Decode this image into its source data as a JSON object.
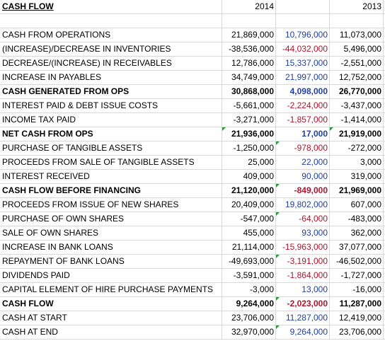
{
  "header": {
    "title": "CASH FLOW",
    "col_2014": "2014",
    "col_blank": "",
    "col_2013": "2013"
  },
  "rows": [
    {
      "label": "CASH FROM OPERATIONS",
      "a": "21,869,000",
      "b": "10,796,000",
      "c": "11,073,000",
      "bold": false,
      "b_color": "blue",
      "mark": ""
    },
    {
      "label": "(INCREASE)/DECREASE IN INVENTORIES",
      "a": "-38,536,000",
      "b": "-44,032,000",
      "c": "5,496,000",
      "bold": false,
      "b_color": "red",
      "mark": ""
    },
    {
      "label": "DECREASE/(INCREASE) IN RECEIVABLES",
      "a": "12,786,000",
      "b": "15,337,000",
      "c": "-2,551,000",
      "bold": false,
      "b_color": "blue",
      "mark": ""
    },
    {
      "label": "INCREASE IN PAYABLES",
      "a": "34,749,000",
      "b": "21,997,000",
      "c": "12,752,000",
      "bold": false,
      "b_color": "blue",
      "mark": ""
    },
    {
      "label": "CASH GENERATED FROM OPS",
      "a": "30,868,000",
      "b": "4,098,000",
      "c": "26,770,000",
      "bold": true,
      "b_color": "blue",
      "mark": ""
    },
    {
      "label": "INTEREST PAID & DEBT ISSUE COSTS",
      "a": "-5,661,000",
      "b": "-2,224,000",
      "c": "-3,437,000",
      "bold": false,
      "b_color": "red",
      "mark": ""
    },
    {
      "label": "INCOME TAX PAID",
      "a": "-3,271,000",
      "b": "-1,857,000",
      "c": "-1,414,000",
      "bold": false,
      "b_color": "red",
      "mark": ""
    },
    {
      "label": "NET CASH FROM OPS",
      "a": "21,936,000",
      "b": "17,000",
      "c": "21,919,000",
      "bold": true,
      "b_color": "blue",
      "mark": "ac"
    },
    {
      "label": "PURCHASE OF TANGIBLE ASSETS",
      "a": "-1,250,000",
      "b": "-978,000",
      "c": "-272,000",
      "bold": false,
      "b_color": "red",
      "mark": "b"
    },
    {
      "label": "PROCEEDS FROM SALE OF TANGIBLE ASSETS",
      "a": "25,000",
      "b": "22,000",
      "c": "3,000",
      "bold": false,
      "b_color": "blue",
      "mark": ""
    },
    {
      "label": "INTEREST RECEIVED",
      "a": "409,000",
      "b": "90,000",
      "c": "319,000",
      "bold": false,
      "b_color": "blue",
      "mark": ""
    },
    {
      "label": "CASH FLOW BEFORE FINANCING",
      "a": "21,120,000",
      "b": "-849,000",
      "c": "21,969,000",
      "bold": true,
      "b_color": "red",
      "mark": "b"
    },
    {
      "label": "PROCEEDS FROM ISSUE OF NEW SHARES",
      "a": "20,409,000",
      "b": "19,802,000",
      "c": "607,000",
      "bold": false,
      "b_color": "blue",
      "mark": ""
    },
    {
      "label": "PURCHASE OF OWN SHARES",
      "a": "-547,000",
      "b": "-64,000",
      "c": "-483,000",
      "bold": false,
      "b_color": "red",
      "mark": "b"
    },
    {
      "label": "SALE OF OWN SHARES",
      "a": "455,000",
      "b": "93,000",
      "c": "362,000",
      "bold": false,
      "b_color": "blue",
      "mark": ""
    },
    {
      "label": "INCREASE IN BANK LOANS",
      "a": "21,114,000",
      "b": "-15,963,000",
      "c": "37,077,000",
      "bold": false,
      "b_color": "red",
      "mark": ""
    },
    {
      "label": "REPAYMENT OF BANK LOANS",
      "a": "-49,693,000",
      "b": "-3,191,000",
      "c": "-46,502,000",
      "bold": false,
      "b_color": "red",
      "mark": "b"
    },
    {
      "label": "DIVIDENDS PAID",
      "a": "-3,591,000",
      "b": "-1,864,000",
      "c": "-1,727,000",
      "bold": false,
      "b_color": "red",
      "mark": ""
    },
    {
      "label": "CAPITAL ELEMENT OF HIRE PURCHASE PAYMENTS",
      "a": "-3,000",
      "b": "13,000",
      "c": "-16,000",
      "bold": false,
      "b_color": "blue",
      "mark": ""
    },
    {
      "label": "CASH FLOW",
      "a": "9,264,000",
      "b": "-2,023,000",
      "c": "11,287,000",
      "bold": true,
      "b_color": "red",
      "mark": "b"
    },
    {
      "label": "CASH AT START",
      "a": "23,706,000",
      "b": "11,287,000",
      "c": "12,419,000",
      "bold": false,
      "b_color": "blue",
      "mark": ""
    },
    {
      "label": "CASH AT END",
      "a": "32,970,000",
      "b": "9,264,000",
      "c": "23,706,000",
      "bold": false,
      "b_color": "blue",
      "mark": "b"
    }
  ]
}
